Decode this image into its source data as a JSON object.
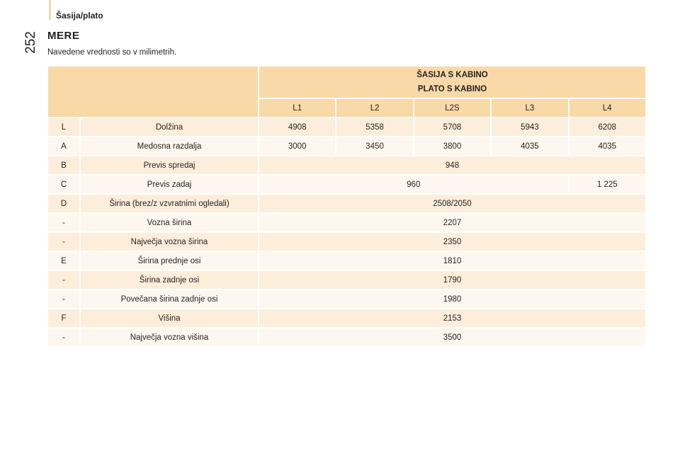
{
  "header": {
    "section": "Šasija/plato",
    "page_number": "252"
  },
  "title": "MERE",
  "subtitle": "Navedene vrednosti so v milimetrih.",
  "table": {
    "group_line1": "ŠASIJA S KABINO",
    "group_line2": "PLATO S KABINO",
    "columns": [
      "L1",
      "L2",
      "L2S",
      "L3",
      "L4"
    ],
    "rows": [
      {
        "code": "L",
        "label": "Dolžina",
        "values": [
          "4908",
          "5358",
          "5708",
          "5943",
          "6208"
        ]
      },
      {
        "code": "A",
        "label": "Medosna razdalja",
        "values": [
          "3000",
          "3450",
          "3800",
          "4035",
          "4035"
        ]
      },
      {
        "code": "B",
        "label": "Previs spredaj",
        "values": [
          "948"
        ]
      },
      {
        "code": "C",
        "label": "Previs zadaj",
        "values": [
          "960",
          "1 225"
        ]
      },
      {
        "code": "D",
        "label": "Širina (brez/z vzvratnimi ogledali)",
        "values": [
          "2508/2050"
        ]
      },
      {
        "code": "-",
        "label": "Vozna širina",
        "values": [
          "2207"
        ]
      },
      {
        "code": "-",
        "label": "Največja vozna širina",
        "values": [
          "2350"
        ]
      },
      {
        "code": "E",
        "label": "Širina prednje osi",
        "values": [
          "1810"
        ]
      },
      {
        "code": "-",
        "label": "Širina zadnje osi",
        "values": [
          "1790"
        ]
      },
      {
        "code": "-",
        "label": "Povečana širina zadnje osi",
        "values": [
          "1980"
        ]
      },
      {
        "code": "F",
        "label": "Višina",
        "values": [
          "2153"
        ]
      },
      {
        "code": "-",
        "label": "Največja vozna višina",
        "values": [
          "3500"
        ]
      }
    ]
  }
}
